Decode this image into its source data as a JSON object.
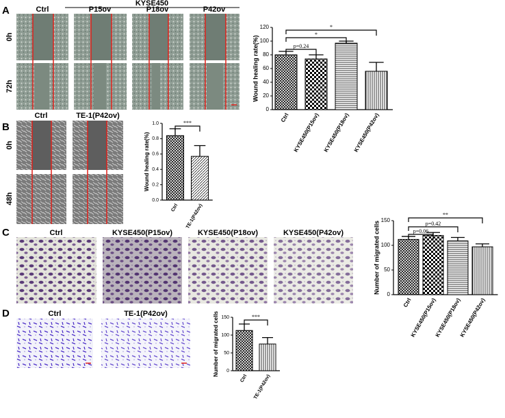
{
  "figure": {
    "panel_labels": [
      "A",
      "B",
      "C",
      "D"
    ],
    "a_header": "KYSE450",
    "a_columns": [
      "Ctrl",
      "P15ov",
      "P18ov",
      "P42ov"
    ],
    "a_rows": [
      "0h",
      "72h"
    ],
    "b_columns": [
      "Ctrl",
      "TE-1(P42ov)"
    ],
    "b_rows": [
      "0h",
      "48h"
    ],
    "c_columns": [
      "Ctrl",
      "KYSE450(P15ov)",
      "KYSE450(P18ov)",
      "KYSE450(P42ov)"
    ],
    "d_columns": [
      "Ctrl",
      "TE-1(P42ov)"
    ]
  },
  "chart_data": [
    {
      "type": "bar",
      "y_label": "Wound healing rate(%)",
      "categories": [
        "Ctrl",
        "KYSE450(P15ov)",
        "KYSE450(P18ov)",
        "KYSE450(P42ov)"
      ],
      "values": [
        80,
        74,
        97,
        56
      ],
      "errors": [
        5,
        6,
        3,
        13
      ],
      "ylim": [
        0,
        120
      ],
      "yticks": [
        0,
        20,
        40,
        60,
        80,
        100,
        120
      ],
      "annotations": [
        "p=0.24",
        "*",
        "*"
      ]
    },
    {
      "type": "bar",
      "y_label": "Wound healing rate(%)",
      "categories": [
        "Ctrl",
        "TE-1(P42ov)"
      ],
      "values": [
        0.84,
        0.57
      ],
      "errors": [
        0.09,
        0.14
      ],
      "ylim": [
        0,
        1.0
      ],
      "yticks": [
        {
          "value": 0,
          "label": "0.0"
        },
        0.2,
        0.4,
        0.6,
        0.8,
        {
          "value": 1.0,
          "label": "1.0"
        }
      ],
      "annotations": [
        "***"
      ]
    },
    {
      "type": "bar",
      "y_label": "Number of migrated cells",
      "categories": [
        "Ctrl",
        "KYSE450(P15ov)",
        "KYSE450(P18ov)",
        "KYSE450(P42ov)"
      ],
      "values": [
        112,
        120,
        109,
        97
      ],
      "errors": [
        6,
        6,
        7,
        6
      ],
      "ylim": [
        0,
        150
      ],
      "yticks": [
        0,
        50,
        100,
        150
      ],
      "annotations": [
        "p=0.06",
        "p=0.42",
        "**"
      ]
    },
    {
      "type": "bar",
      "y_label": "Number of migrated cells",
      "categories": [
        "Ctrl",
        "TE-1(P42ov)"
      ],
      "values": [
        113,
        75
      ],
      "errors": [
        18,
        18
      ],
      "ylim": [
        0,
        150
      ],
      "yticks": [
        0,
        50,
        100,
        150
      ],
      "annotations": [
        "***"
      ]
    }
  ]
}
